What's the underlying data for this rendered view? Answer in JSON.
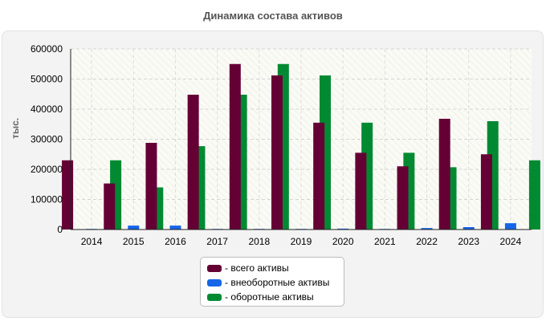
{
  "title": "Динамика состава активов",
  "chart_data": {
    "type": "bar",
    "title": "Динамика состава активов",
    "ylabel": "тыс.",
    "xlabel": "",
    "categories": [
      "2014",
      "2015",
      "2016",
      "2017",
      "2018",
      "2019",
      "2020",
      "2021",
      "2022",
      "2023",
      "2024"
    ],
    "ylim": [
      0,
      600000
    ],
    "yticks": [
      0,
      100000,
      200000,
      300000,
      400000,
      500000,
      600000
    ],
    "grid": true,
    "legend_position": "bottom",
    "series": [
      {
        "name": "- всего активы",
        "color": "#650035",
        "values": [
          230000,
          153000,
          288000,
          448000,
          550000,
          512000,
          355000,
          255000,
          210000,
          368000,
          250000
        ]
      },
      {
        "name": "- внеоборотные активы",
        "color": "#1565e8",
        "values": [
          2000,
          13000,
          13000,
          2000,
          2000,
          2000,
          3000,
          2000,
          5000,
          8000,
          21000
        ]
      },
      {
        "name": "- оборотные активы",
        "color": "#028a32",
        "values": [
          230000,
          140000,
          277000,
          448000,
          550000,
          512000,
          355000,
          255000,
          207000,
          360000,
          230000
        ]
      }
    ]
  }
}
